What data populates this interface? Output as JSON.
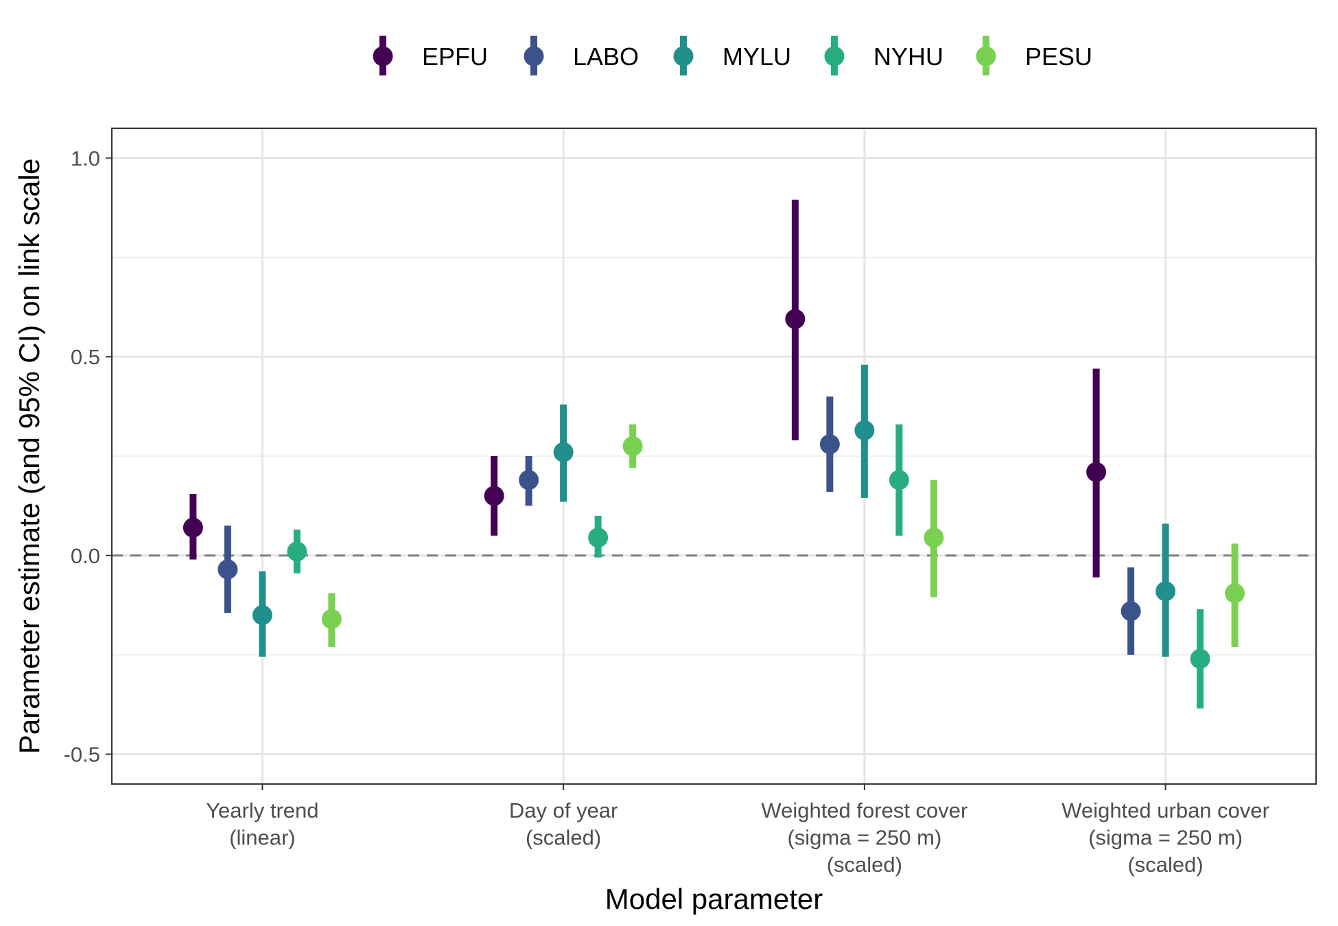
{
  "chart_data": {
    "type": "pointrange",
    "xlabel": "Model parameter",
    "ylabel": "Parameter estimate (and 95% CI) on link scale",
    "ylim": [
      -0.575,
      1.075
    ],
    "yticks": [
      -0.5,
      0.0,
      0.5,
      1.0
    ],
    "ytick_labels": [
      "-0.5",
      "0.0",
      "0.5",
      "1.0"
    ],
    "reference_line": 0.0,
    "grid": true,
    "legend_position": "top",
    "categories": [
      {
        "lines": [
          "Yearly trend",
          "(linear)"
        ]
      },
      {
        "lines": [
          "Day of year",
          "(scaled)"
        ]
      },
      {
        "lines": [
          "Weighted forest cover",
          "(sigma = 250 m)",
          "(scaled)"
        ]
      },
      {
        "lines": [
          "Weighted urban cover",
          "(sigma = 250 m)",
          "(scaled)"
        ]
      }
    ],
    "series": [
      {
        "name": "EPFU",
        "color": "#440154",
        "points": [
          {
            "estimate": 0.07,
            "lower": -0.01,
            "upper": 0.155
          },
          {
            "estimate": 0.15,
            "lower": 0.05,
            "upper": 0.25
          },
          {
            "estimate": 0.595,
            "lower": 0.29,
            "upper": 0.895
          },
          {
            "estimate": 0.21,
            "lower": -0.055,
            "upper": 0.47
          }
        ]
      },
      {
        "name": "LABO",
        "color": "#3B528B",
        "points": [
          {
            "estimate": -0.035,
            "lower": -0.145,
            "upper": 0.075
          },
          {
            "estimate": 0.19,
            "lower": 0.125,
            "upper": 0.25
          },
          {
            "estimate": 0.28,
            "lower": 0.16,
            "upper": 0.4
          },
          {
            "estimate": -0.14,
            "lower": -0.25,
            "upper": -0.03
          }
        ]
      },
      {
        "name": "MYLU",
        "color": "#21908C",
        "points": [
          {
            "estimate": -0.15,
            "lower": -0.255,
            "upper": -0.04
          },
          {
            "estimate": 0.26,
            "lower": 0.135,
            "upper": 0.38
          },
          {
            "estimate": 0.315,
            "lower": 0.145,
            "upper": 0.48
          },
          {
            "estimate": -0.09,
            "lower": -0.255,
            "upper": 0.08
          }
        ]
      },
      {
        "name": "NYHU",
        "color": "#27AD81",
        "points": [
          {
            "estimate": 0.01,
            "lower": -0.045,
            "upper": 0.065
          },
          {
            "estimate": 0.045,
            "lower": -0.005,
            "upper": 0.1
          },
          {
            "estimate": 0.19,
            "lower": 0.05,
            "upper": 0.33
          },
          {
            "estimate": -0.26,
            "lower": -0.385,
            "upper": -0.135
          }
        ]
      },
      {
        "name": "PESU",
        "color": "#7AD151",
        "points": [
          {
            "estimate": -0.16,
            "lower": -0.23,
            "upper": -0.095
          },
          {
            "estimate": 0.275,
            "lower": 0.22,
            "upper": 0.33
          },
          {
            "estimate": 0.045,
            "lower": -0.105,
            "upper": 0.19
          },
          {
            "estimate": -0.095,
            "lower": -0.23,
            "upper": 0.03
          }
        ]
      }
    ]
  }
}
